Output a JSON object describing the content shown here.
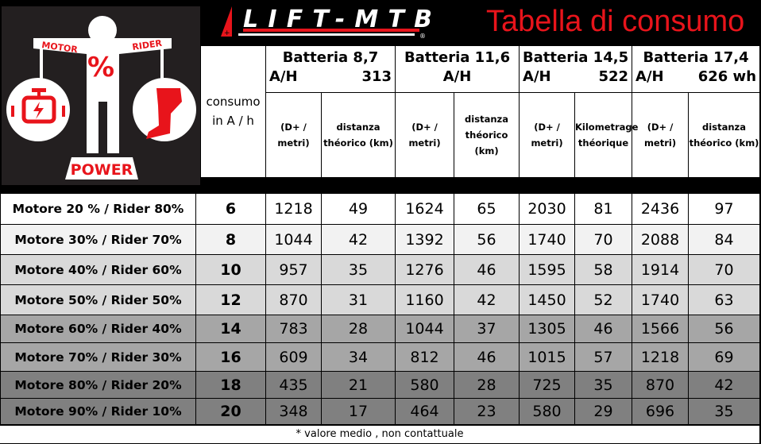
{
  "logo": {
    "motor": "MOTOR",
    "rider": "RIDER",
    "percent": "%",
    "power": "POWER",
    "brand": "LIFT-MTB"
  },
  "title": "Tabella di consumo",
  "header": {
    "consumo": "consumo in A / h",
    "batteries": [
      {
        "line1": "Batteria 8,7",
        "unit": "A/H",
        "value": "313"
      },
      {
        "line1": "Batteria 11,6",
        "unit": "A/H",
        "value": ""
      },
      {
        "line1": "Batteria 14,5",
        "unit": "A/H",
        "value": "522"
      },
      {
        "line1": "Batteria 17,4",
        "unit": "A/H",
        "value": "626 wh"
      }
    ],
    "subheaders": [
      "(D+ / metri)",
      "distanza théorico (km)",
      "(D+ / metri)",
      "distanza théorico (km)",
      "(D+ / metri)",
      "Kilometrage théorique",
      "(D+ / metri)",
      "distanza théorico (km)"
    ]
  },
  "rows": [
    {
      "label": "Motore 20 % / Rider 80%",
      "consumo": "6",
      "values": [
        "1218",
        "49",
        "1624",
        "65",
        "2030",
        "81",
        "2436",
        "97"
      ],
      "bg": "#ffffff"
    },
    {
      "label": "Motore 30% / Rider 70%",
      "consumo": "8",
      "values": [
        "1044",
        "42",
        "1392",
        "56",
        "1740",
        "70",
        "2088",
        "84"
      ],
      "bg": "#f2f2f2"
    },
    {
      "label": "Motore 40% / Rider 60%",
      "consumo": "10",
      "values": [
        "957",
        "35",
        "1276",
        "46",
        "1595",
        "58",
        "1914",
        "70"
      ],
      "bg": "#d9d9d9"
    },
    {
      "label": "Motore 50% / Rider 50%",
      "consumo": "12",
      "values": [
        "870",
        "31",
        "1160",
        "42",
        "1450",
        "52",
        "1740",
        "63"
      ],
      "bg": "#d9d9d9"
    },
    {
      "label": "Motore 60%  / Rider 40%",
      "consumo": "14",
      "values": [
        "783",
        "28",
        "1044",
        "37",
        "1305",
        "46",
        "1566",
        "56"
      ],
      "bg": "#a6a6a6"
    },
    {
      "label": "Motore 70% / Rider 30%",
      "consumo": "16",
      "values": [
        "609",
        "34",
        "812",
        "46",
        "1015",
        "57",
        "1218",
        "69"
      ],
      "bg": "#a6a6a6"
    },
    {
      "label": "Motore 80%  / Rider 20%",
      "consumo": "18",
      "values": [
        "435",
        "21",
        "580",
        "28",
        "725",
        "35",
        "870",
        "42"
      ],
      "bg": "#808080"
    },
    {
      "label": "Motore 90% / Rider 10%",
      "consumo": "20",
      "values": [
        "348",
        "17",
        "464",
        "23",
        "580",
        "29",
        "696",
        "35"
      ],
      "bg": "#808080"
    }
  ],
  "footnote": "* valore medio , non contattuale",
  "colors": {
    "accent": "#e8141b",
    "logo_bg": "#231f20"
  }
}
